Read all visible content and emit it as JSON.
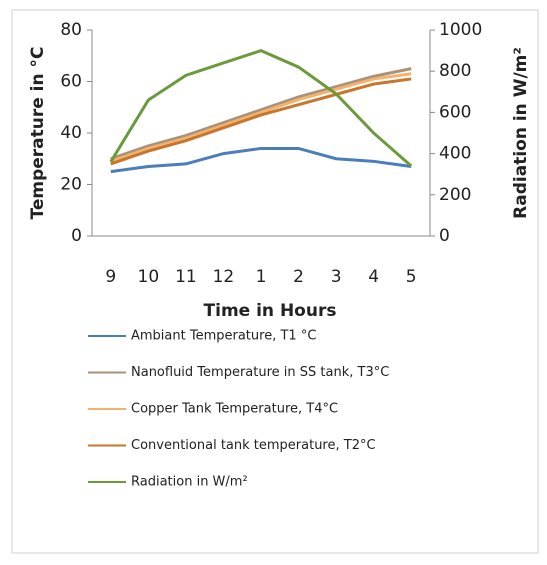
{
  "chart_data": {
    "type": "line",
    "x_label": "Time in Hours",
    "y_label": "Temperature in °C",
    "y2_label": "Radiation in W/m²",
    "categories": [
      "9",
      "10",
      "11",
      "12",
      "1",
      "2",
      "3",
      "4",
      "5"
    ],
    "ylim": [
      0,
      80
    ],
    "yticks": [
      0,
      20,
      40,
      60,
      80
    ],
    "y2lim": [
      0,
      1000
    ],
    "y2ticks": [
      0,
      200,
      400,
      600,
      800,
      1000
    ],
    "grid": false,
    "series": [
      {
        "name": "Ambiant Temperature, T1 °C",
        "color": "#4a7ebb",
        "values": [
          25,
          27,
          28,
          32,
          34,
          34,
          30,
          29,
          27
        ]
      },
      {
        "name": "Nanofluid Temperature in SS tank, T3°C",
        "color": "#a8927a",
        "values": [
          30,
          35,
          39,
          44,
          49,
          54,
          58,
          62,
          65
        ]
      },
      {
        "name": "Copper Tank Temperature, T4°C",
        "color": "#f4b26b",
        "values": [
          29,
          34,
          38,
          43,
          48,
          53,
          57,
          61,
          63
        ]
      },
      {
        "name": "Conventional tank temperature, T2°C",
        "color": "#c8762e",
        "values": [
          28,
          33,
          37,
          42,
          47,
          51,
          55,
          59,
          61
        ]
      },
      {
        "name": "Radiation in W/m²",
        "color": "#6a9a3a",
        "axis": "y2",
        "values": [
          360,
          660,
          780,
          840,
          900,
          820,
          690,
          500,
          340
        ]
      }
    ]
  }
}
